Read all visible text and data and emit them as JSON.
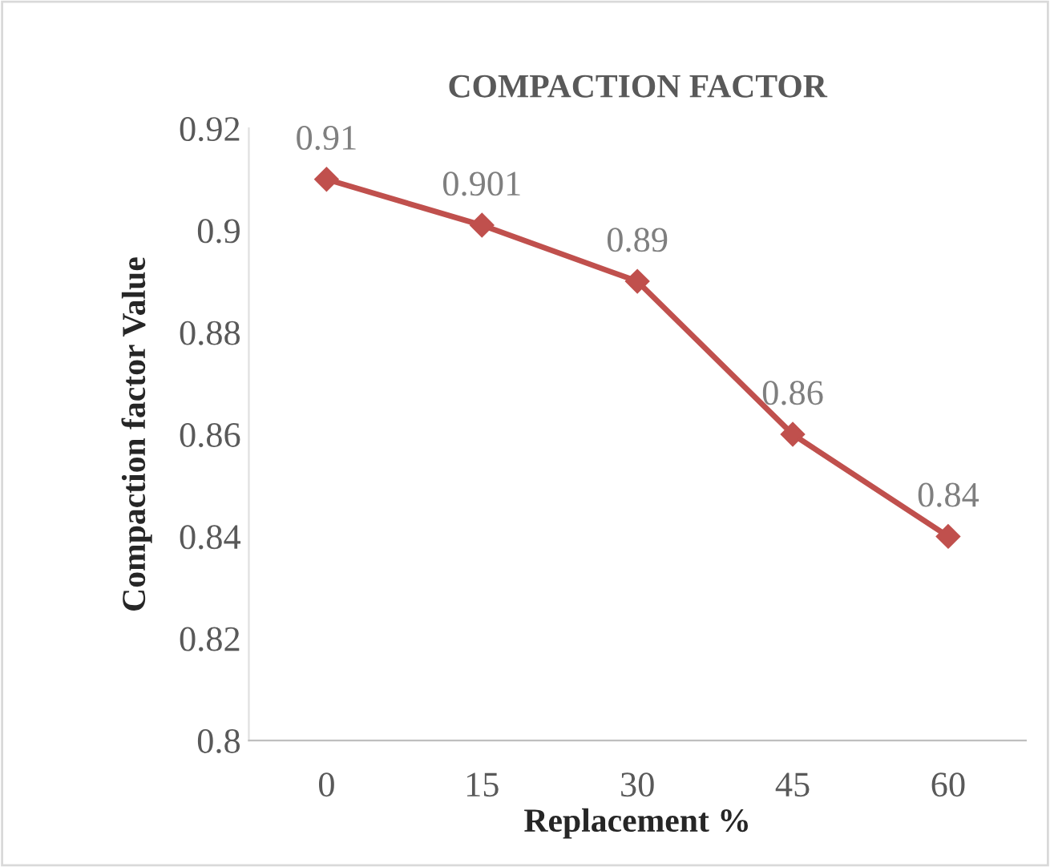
{
  "chart_data": {
    "type": "line",
    "title": "COMPACTION FACTOR",
    "xlabel": "Replacement %",
    "ylabel": "Compaction factor Value",
    "categories": [
      "0",
      "15",
      "30",
      "45",
      "60"
    ],
    "series": [
      {
        "color": "#c0504d",
        "values": [
          0.91,
          0.901,
          0.89,
          0.86,
          0.84
        ]
      }
    ],
    "ylim": [
      0.8,
      0.92
    ],
    "yticks": [
      0.8,
      0.82,
      0.84,
      0.86,
      0.88,
      0.9,
      0.92
    ],
    "marker": "diamond",
    "line_style": "solid",
    "data_labels": true,
    "grid": false,
    "legend": false
  }
}
